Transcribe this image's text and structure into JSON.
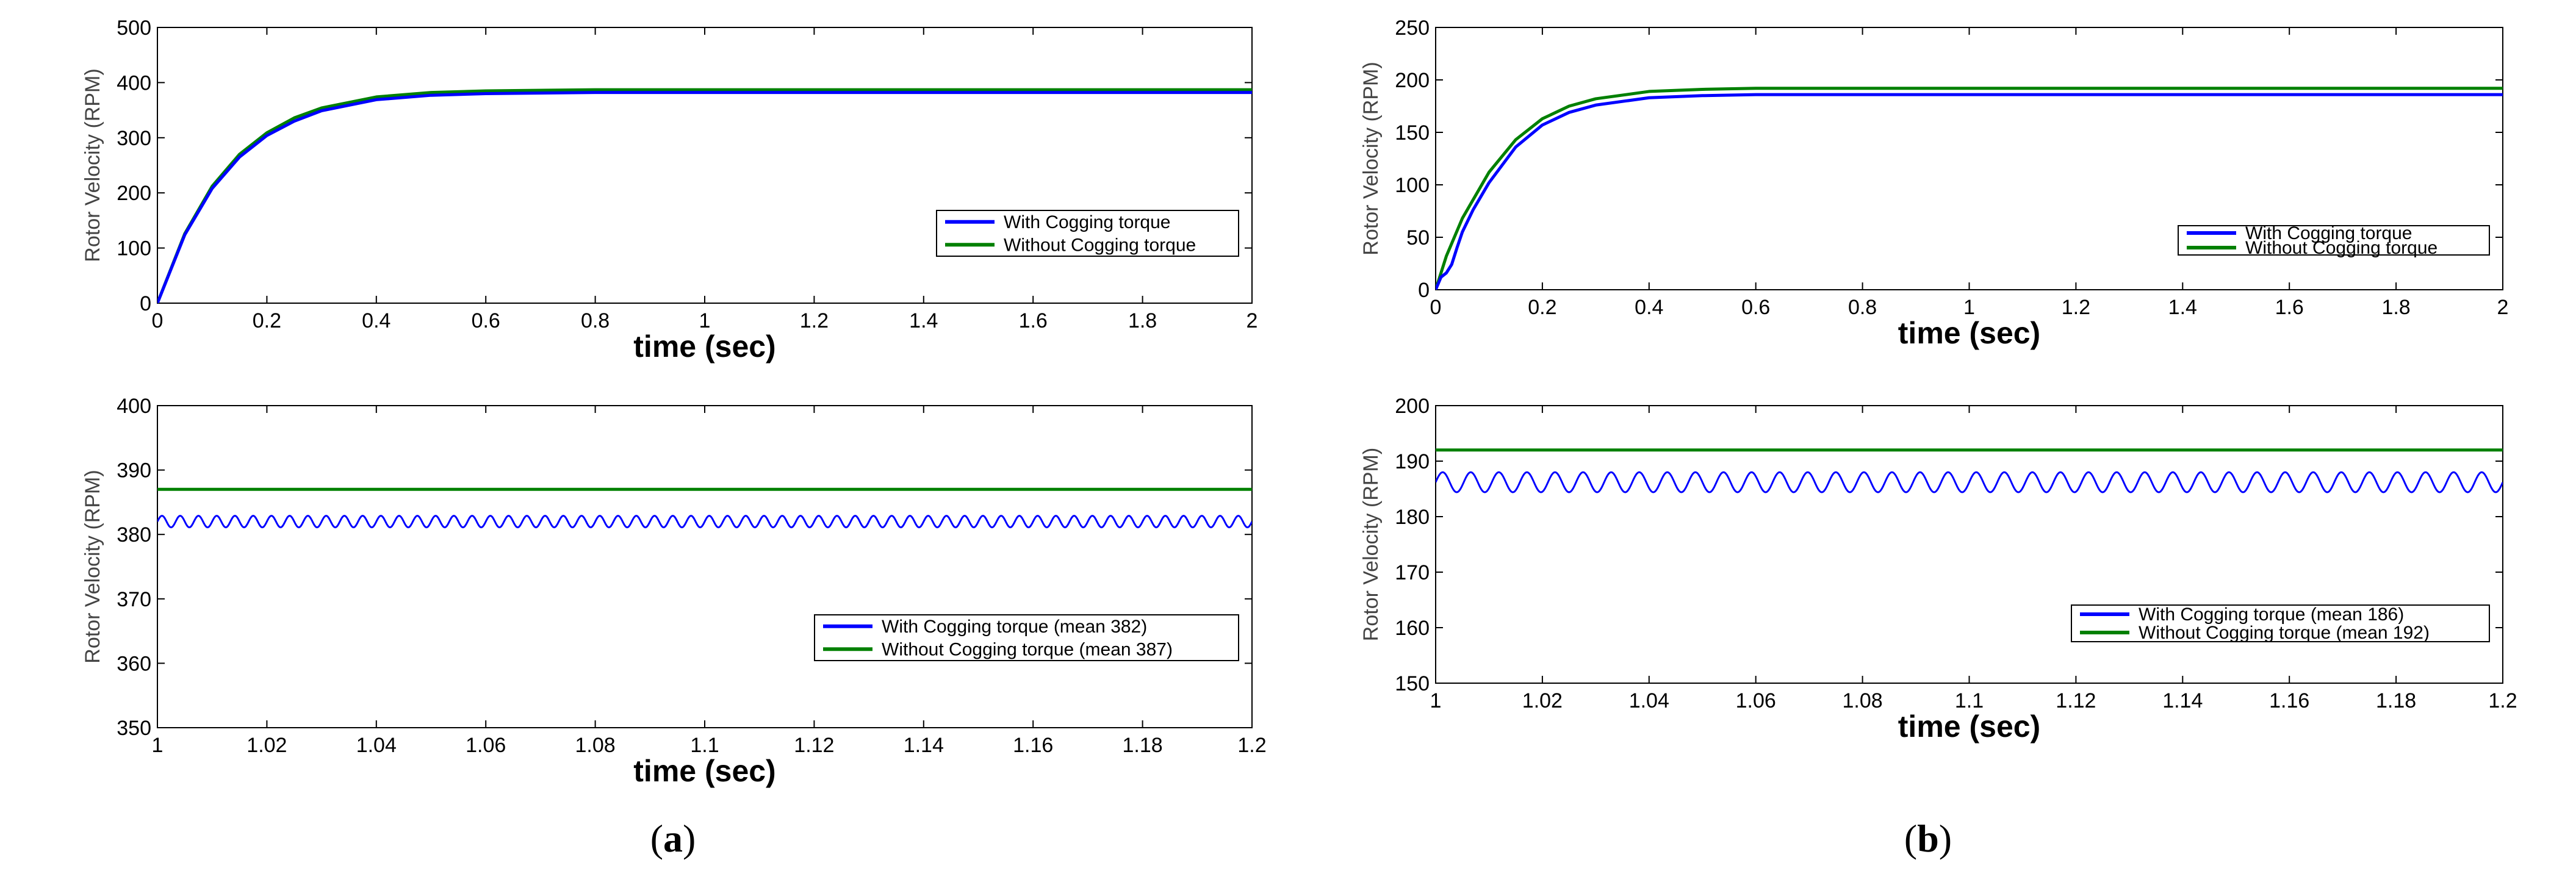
{
  "colors": {
    "with_cogging": "#0000ff",
    "without_cogging": "#008000",
    "axis": "#000000"
  },
  "panels": [
    {
      "caption_letter": "a"
    },
    {
      "caption_letter": "b"
    }
  ],
  "chart_data": [
    {
      "type": "line",
      "panel": "a",
      "xlabel": "time (sec)",
      "ylabel": "Rotor Velocity (RPM)",
      "xlim": [
        0,
        2
      ],
      "ylim": [
        0,
        500
      ],
      "x_ticks": [
        0,
        0.2,
        0.4,
        0.6,
        0.8,
        1,
        1.2,
        1.4,
        1.6,
        1.8,
        2
      ],
      "y_ticks": [
        0,
        100,
        200,
        300,
        400,
        500
      ],
      "legend": "inside-right",
      "series": [
        {
          "name": "With Cogging torque",
          "color": "#0000ff",
          "x": [
            0,
            0.05,
            0.1,
            0.15,
            0.2,
            0.25,
            0.3,
            0.4,
            0.5,
            0.6,
            0.8,
            1.0,
            1.2,
            1.4,
            1.6,
            1.8,
            2.0
          ],
          "y": [
            0,
            124,
            208,
            265,
            304,
            330,
            349,
            369,
            377,
            380,
            382,
            382,
            382,
            382,
            382,
            382,
            382
          ]
        },
        {
          "name": "Without Cogging torque",
          "color": "#008000",
          "x": [
            0,
            0.05,
            0.1,
            0.15,
            0.2,
            0.25,
            0.3,
            0.4,
            0.5,
            0.6,
            0.8,
            1.0,
            1.2,
            1.4,
            1.6,
            1.8,
            2.0
          ],
          "y": [
            0,
            126,
            212,
            270,
            309,
            336,
            354,
            374,
            382,
            385,
            387,
            387,
            387,
            387,
            387,
            387,
            387
          ]
        }
      ]
    },
    {
      "type": "line",
      "panel": "a",
      "xlabel": "time (sec)",
      "ylabel": "Rotor Velocity (RPM)",
      "xlim": [
        1,
        1.2
      ],
      "ylim": [
        350,
        400
      ],
      "x_ticks": [
        1,
        1.02,
        1.04,
        1.06,
        1.08,
        1.1,
        1.12,
        1.14,
        1.16,
        1.18,
        1.2
      ],
      "y_ticks": [
        350,
        360,
        370,
        380,
        390,
        400
      ],
      "legend": "bottom-right",
      "series": [
        {
          "name": "With Cogging torque (mean 382)",
          "color": "#0000ff",
          "mean": 382,
          "amplitude": 0.9,
          "cycles": 60,
          "x": [
            1,
            1.2
          ],
          "y": [
            382,
            382
          ]
        },
        {
          "name": "Without Cogging torque (mean 387)",
          "color": "#008000",
          "mean": 387,
          "x": [
            1,
            1.2
          ],
          "y": [
            387,
            387
          ]
        }
      ]
    },
    {
      "type": "line",
      "panel": "b",
      "xlabel": "time (sec)",
      "ylabel": "Rotor Velocity (RPM)",
      "xlim": [
        0,
        2
      ],
      "ylim": [
        0,
        250
      ],
      "x_ticks": [
        0,
        0.2,
        0.4,
        0.6,
        0.8,
        1,
        1.2,
        1.4,
        1.6,
        1.8,
        2
      ],
      "y_ticks": [
        0,
        50,
        100,
        150,
        200,
        250
      ],
      "legend": "inside-right",
      "series": [
        {
          "name": "With Cogging torque",
          "color": "#0000ff",
          "x": [
            0,
            0.01,
            0.02,
            0.03,
            0.04,
            0.05,
            0.07,
            0.1,
            0.15,
            0.2,
            0.25,
            0.3,
            0.4,
            0.5,
            0.6,
            0.8,
            1.0,
            1.2,
            1.4,
            1.6,
            1.8,
            2.0
          ],
          "y": [
            0,
            12,
            16,
            24,
            40,
            55,
            76,
            102,
            136,
            157,
            169,
            176,
            183,
            185,
            186,
            186,
            186,
            186,
            186,
            186,
            186,
            186
          ]
        },
        {
          "name": "Without Cogging torque",
          "color": "#008000",
          "x": [
            0,
            0.02,
            0.05,
            0.1,
            0.15,
            0.2,
            0.25,
            0.3,
            0.4,
            0.5,
            0.6,
            0.8,
            1.0,
            1.2,
            1.4,
            1.6,
            1.8,
            2.0
          ],
          "y": [
            0,
            32,
            68,
            112,
            143,
            163,
            175,
            182,
            189,
            191,
            192,
            192,
            192,
            192,
            192,
            192,
            192,
            192
          ]
        }
      ]
    },
    {
      "type": "line",
      "panel": "b",
      "xlabel": "time (sec)",
      "ylabel": "Rotor Velocity (RPM)",
      "xlim": [
        1,
        1.2
      ],
      "ylim": [
        150,
        200
      ],
      "x_ticks": [
        1,
        1.02,
        1.04,
        1.06,
        1.08,
        1.1,
        1.12,
        1.14,
        1.16,
        1.18,
        1.2
      ],
      "y_ticks": [
        150,
        160,
        170,
        180,
        190,
        200
      ],
      "legend": "bottom-right",
      "series": [
        {
          "name": "With Cogging torque (mean 186)",
          "color": "#0000ff",
          "mean": 186.2,
          "amplitude": 1.8,
          "cycles": 38,
          "x": [
            1,
            1.2
          ],
          "y": [
            186.2,
            186.2
          ]
        },
        {
          "name": "Without Cogging torque (mean 192)",
          "color": "#008000",
          "mean": 192,
          "x": [
            1,
            1.2
          ],
          "y": [
            192,
            192
          ]
        }
      ]
    }
  ]
}
